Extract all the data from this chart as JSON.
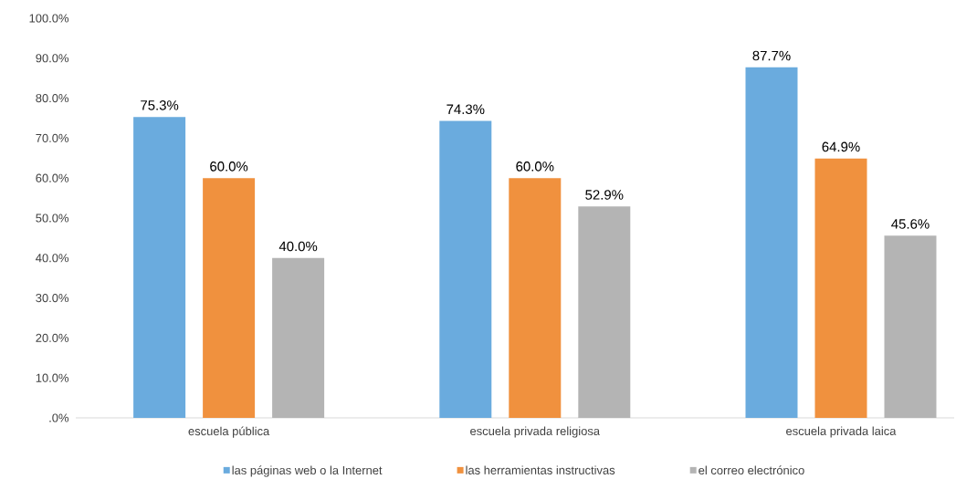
{
  "chart_data": {
    "type": "bar",
    "categories": [
      "escuela pública",
      "escuela privada religiosa",
      "escuela privada laica"
    ],
    "series": [
      {
        "name": "las páginas web o la Internet",
        "color": "#6aabde",
        "values": [
          75.3,
          74.3,
          87.7
        ],
        "value_labels": [
          "75.3%",
          "74.3%",
          "87.7%"
        ]
      },
      {
        "name": "las herramientas instructivas",
        "color": "#f0913e",
        "values": [
          60.0,
          60.0,
          64.9
        ],
        "value_labels": [
          "60.0%",
          "60.0%",
          "64.9%"
        ]
      },
      {
        "name": "el correo electrónico",
        "color": "#b4b4b4",
        "values": [
          40.0,
          52.9,
          45.6
        ],
        "value_labels": [
          "40.0%",
          "52.9%",
          "45.6%"
        ]
      }
    ],
    "ylim": [
      0,
      100
    ],
    "yticks": [
      {
        "value": 0,
        "label": ".0%"
      },
      {
        "value": 10,
        "label": "10.0%"
      },
      {
        "value": 20,
        "label": "20.0%"
      },
      {
        "value": 30,
        "label": "30.0%"
      },
      {
        "value": 40,
        "label": "40.0%"
      },
      {
        "value": 50,
        "label": "50.0%"
      },
      {
        "value": 60,
        "label": "60.0%"
      },
      {
        "value": 70,
        "label": "70.0%"
      },
      {
        "value": 80,
        "label": "80.0%"
      },
      {
        "value": 90,
        "label": "90.0%"
      },
      {
        "value": 100,
        "label": "100.0%"
      }
    ],
    "grid": false,
    "legend": "bottom"
  }
}
